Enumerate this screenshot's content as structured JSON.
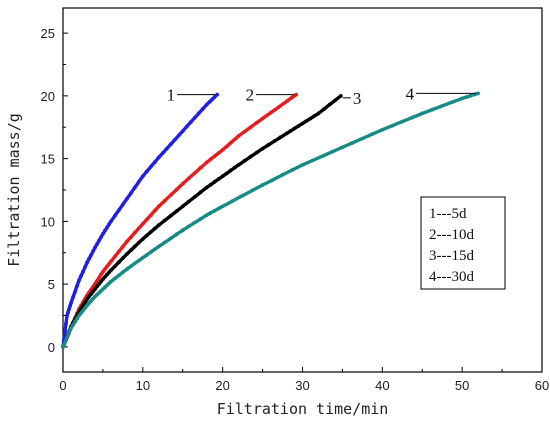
{
  "chart_data": {
    "type": "line",
    "xlabel": "Filtration time/min",
    "ylabel": "Filtration mass/g",
    "xlim": [
      0,
      60
    ],
    "ylim": [
      -2,
      27
    ],
    "x_ticks": [
      0,
      10,
      20,
      30,
      40,
      50,
      60
    ],
    "y_ticks": [
      0,
      5,
      10,
      15,
      20,
      25
    ],
    "grid": false,
    "legend_position": "right",
    "legend_entries": [
      "1---5d",
      "2---10d",
      "3---15d",
      "4---30d"
    ],
    "series": [
      {
        "tag": "1",
        "color": "#1f1fe6",
        "x": [
          0,
          0.5,
          1,
          2,
          3,
          4,
          5,
          6,
          8,
          10,
          12,
          14,
          16,
          18,
          19.3
        ],
        "y": [
          0,
          2.5,
          3.5,
          5.3,
          6.7,
          7.9,
          9.0,
          10.0,
          11.8,
          13.6,
          15.1,
          16.5,
          17.9,
          19.3,
          20.1
        ]
      },
      {
        "tag": "2",
        "color": "#e81c1c",
        "x": [
          0,
          0.7,
          1,
          2,
          3,
          4,
          5,
          6,
          8,
          10,
          12,
          15,
          18,
          20,
          22,
          25,
          27,
          29.2
        ],
        "y": [
          0,
          1.0,
          1.6,
          3.0,
          4.1,
          5.0,
          6.0,
          6.8,
          8.4,
          9.8,
          11.2,
          13.0,
          14.7,
          15.7,
          16.8,
          18.2,
          19.1,
          20.1
        ]
      },
      {
        "tag": "3",
        "color": "#000000",
        "x": [
          0,
          1,
          2,
          3,
          4,
          5,
          6,
          8,
          10,
          12,
          15,
          18,
          20,
          22,
          25,
          28,
          30,
          32,
          34.8
        ],
        "y": [
          0,
          1.6,
          2.8,
          3.8,
          4.6,
          5.4,
          6.1,
          7.4,
          8.6,
          9.7,
          11.2,
          12.7,
          13.6,
          14.5,
          15.8,
          17.0,
          17.8,
          18.6,
          20.0
        ]
      },
      {
        "tag": "4",
        "color": "#178b86",
        "x": [
          0,
          1,
          2,
          3,
          4,
          5,
          6,
          8,
          10,
          12,
          15,
          18,
          20,
          25,
          30,
          35,
          40,
          45,
          50,
          52
        ],
        "y": [
          0,
          1.5,
          2.5,
          3.3,
          4.0,
          4.6,
          5.2,
          6.2,
          7.1,
          8.0,
          9.3,
          10.5,
          11.2,
          12.9,
          14.5,
          15.9,
          17.3,
          18.6,
          19.8,
          20.2
        ]
      }
    ]
  }
}
